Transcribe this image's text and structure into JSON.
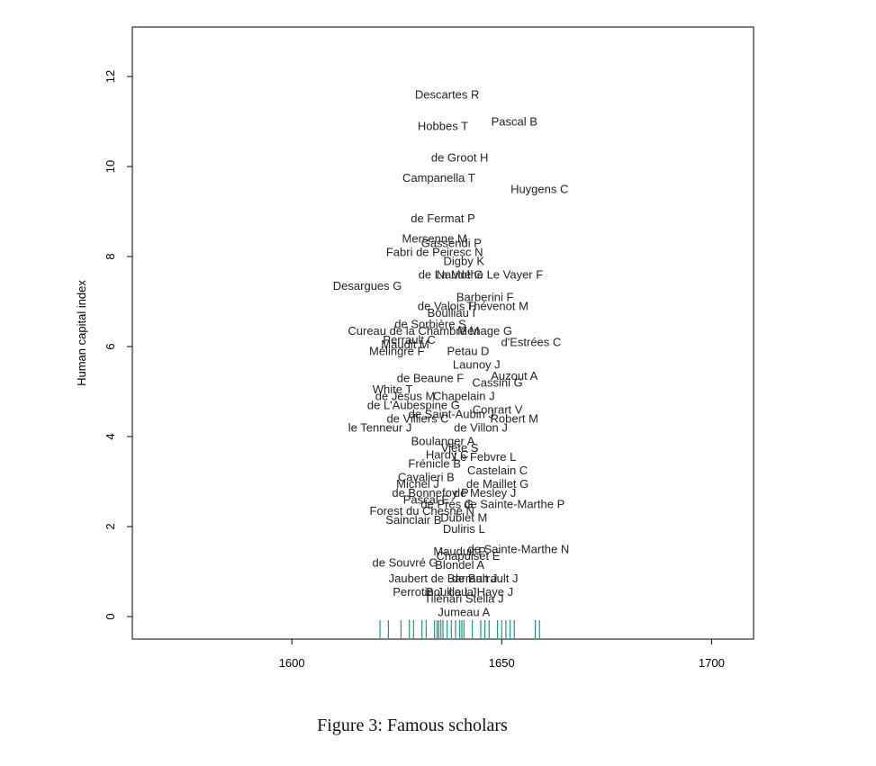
{
  "caption": "Figure 3: Famous scholars",
  "colors": {
    "rug": "#1a9a7a",
    "text": "#222222",
    "axis": "#000000"
  },
  "chart_data": {
    "type": "scatter",
    "title": "",
    "xlabel": "",
    "ylabel": "Human capital index",
    "xlim": [
      1562,
      1710
    ],
    "ylim": [
      -0.5,
      13.1
    ],
    "xticks": [
      "1600",
      "1650",
      "1700"
    ],
    "yticks": [
      "0",
      "2",
      "4",
      "6",
      "8",
      "10",
      "12"
    ],
    "grid": false,
    "legend": "none",
    "points": [
      {
        "label": "Descartes R",
        "x": 1637,
        "y": 11.6
      },
      {
        "label": "Pascal B",
        "x": 1653,
        "y": 11.0
      },
      {
        "label": "Hobbes T",
        "x": 1636,
        "y": 10.9
      },
      {
        "label": "de Groot H",
        "x": 1640,
        "y": 10.2
      },
      {
        "label": "Campanella T",
        "x": 1635,
        "y": 9.75
      },
      {
        "label": "Huygens C",
        "x": 1659,
        "y": 9.5
      },
      {
        "label": "de Fermat P",
        "x": 1636,
        "y": 8.85
      },
      {
        "label": "Mersenne M",
        "x": 1634,
        "y": 8.4
      },
      {
        "label": "Gassendi P",
        "x": 1638,
        "y": 8.3
      },
      {
        "label": "Fabri de Peiresc N",
        "x": 1634,
        "y": 8.1
      },
      {
        "label": "Digby K",
        "x": 1641,
        "y": 7.9
      },
      {
        "label": "de La Mothe Le Vayer F",
        "x": 1645,
        "y": 7.6
      },
      {
        "label": "Naudé G",
        "x": 1640,
        "y": 7.6
      },
      {
        "label": "Desargues G",
        "x": 1618,
        "y": 7.35
      },
      {
        "label": "Barberini F",
        "x": 1646,
        "y": 7.1
      },
      {
        "label": "Thévenot M",
        "x": 1649,
        "y": 6.9
      },
      {
        "label": "de Valois H",
        "x": 1637,
        "y": 6.9
      },
      {
        "label": "Boulliau I",
        "x": 1638,
        "y": 6.75
      },
      {
        "label": "de Sorbière S",
        "x": 1633,
        "y": 6.5
      },
      {
        "label": "Cureau de la Chambre M",
        "x": 1629,
        "y": 6.35
      },
      {
        "label": "Ménage G",
        "x": 1646,
        "y": 6.35
      },
      {
        "label": "Perrault C",
        "x": 1628,
        "y": 6.15
      },
      {
        "label": "d'Estrées C",
        "x": 1657,
        "y": 6.1
      },
      {
        "label": "Maudit M",
        "x": 1627,
        "y": 6.05
      },
      {
        "label": "Mélingre F",
        "x": 1625,
        "y": 5.9
      },
      {
        "label": "Petau D",
        "x": 1642,
        "y": 5.9
      },
      {
        "label": "Launoy J",
        "x": 1644,
        "y": 5.6
      },
      {
        "label": "Auzout A",
        "x": 1653,
        "y": 5.35
      },
      {
        "label": "de Beaune F",
        "x": 1633,
        "y": 5.3
      },
      {
        "label": "Cassini G",
        "x": 1649,
        "y": 5.2
      },
      {
        "label": "White T",
        "x": 1624,
        "y": 5.05
      },
      {
        "label": "de Jesus M",
        "x": 1627,
        "y": 4.9
      },
      {
        "label": "Chapelain J",
        "x": 1641,
        "y": 4.9
      },
      {
        "label": "de L'Aubespine G",
        "x": 1629,
        "y": 4.7
      },
      {
        "label": "Conrart V",
        "x": 1649,
        "y": 4.6
      },
      {
        "label": "de Saint-Aubin J",
        "x": 1638,
        "y": 4.5
      },
      {
        "label": "de Villiers C",
        "x": 1630,
        "y": 4.4
      },
      {
        "label": "Robert M",
        "x": 1653,
        "y": 4.4
      },
      {
        "label": "le Tenneur J",
        "x": 1621,
        "y": 4.2
      },
      {
        "label": "de Villon J",
        "x": 1645,
        "y": 4.2
      },
      {
        "label": "Boulanger A",
        "x": 1636,
        "y": 3.9
      },
      {
        "label": "Viète S",
        "x": 1640,
        "y": 3.75
      },
      {
        "label": "Hardy C",
        "x": 1637,
        "y": 3.6
      },
      {
        "label": "Le Febvre L",
        "x": 1646,
        "y": 3.55
      },
      {
        "label": "Frénicle B",
        "x": 1634,
        "y": 3.4
      },
      {
        "label": "Castelain C",
        "x": 1649,
        "y": 3.25
      },
      {
        "label": "Cavalieri B",
        "x": 1632,
        "y": 3.1
      },
      {
        "label": "Michel J",
        "x": 1630,
        "y": 2.95
      },
      {
        "label": "de Maillet G",
        "x": 1649,
        "y": 2.95
      },
      {
        "label": "de Mesley J",
        "x": 1646,
        "y": 2.75
      },
      {
        "label": "de Bonnefoy P",
        "x": 1633,
        "y": 2.75
      },
      {
        "label": "Pascal E",
        "x": 1632,
        "y": 2.6
      },
      {
        "label": "de Sainte-Marthe P",
        "x": 1653,
        "y": 2.5
      },
      {
        "label": "de Prés G",
        "x": 1637,
        "y": 2.5
      },
      {
        "label": "Forest du Chesne N",
        "x": 1631,
        "y": 2.35
      },
      {
        "label": "Dublet M",
        "x": 1641,
        "y": 2.2
      },
      {
        "label": "Sainclair B",
        "x": 1629,
        "y": 2.15
      },
      {
        "label": "Duliris L",
        "x": 1641,
        "y": 1.95
      },
      {
        "label": "de Sainte-Marthe N",
        "x": 1654,
        "y": 1.5
      },
      {
        "label": "Mauduit P",
        "x": 1640,
        "y": 1.45
      },
      {
        "label": "Chapuiset E",
        "x": 1642,
        "y": 1.35
      },
      {
        "label": "de Souvré G",
        "x": 1627,
        "y": 1.2
      },
      {
        "label": "Blondel A",
        "x": 1640,
        "y": 1.15
      },
      {
        "label": "de Barrault J",
        "x": 1646,
        "y": 0.85
      },
      {
        "label": "Jaubert de Barrault J",
        "x": 1636,
        "y": 0.85
      },
      {
        "label": "Perrotin J",
        "x": 1630,
        "y": 0.55
      },
      {
        "label": "Boulliau J",
        "x": 1638,
        "y": 0.55
      },
      {
        "label": "de la Haye J",
        "x": 1645,
        "y": 0.55
      },
      {
        "label": "Tilenari Stella J",
        "x": 1641,
        "y": 0.4
      },
      {
        "label": "Jumeau A",
        "x": 1641,
        "y": 0.1
      }
    ],
    "rug_x": [
      1621,
      1623,
      1626,
      1628,
      1629,
      1631,
      1632,
      1634,
      1634.6,
      1635,
      1635.5,
      1636,
      1637,
      1638,
      1639,
      1640,
      1640.5,
      1641,
      1643,
      1645,
      1646,
      1647,
      1649,
      1650,
      1651,
      1652,
      1653,
      1658,
      1659
    ]
  }
}
